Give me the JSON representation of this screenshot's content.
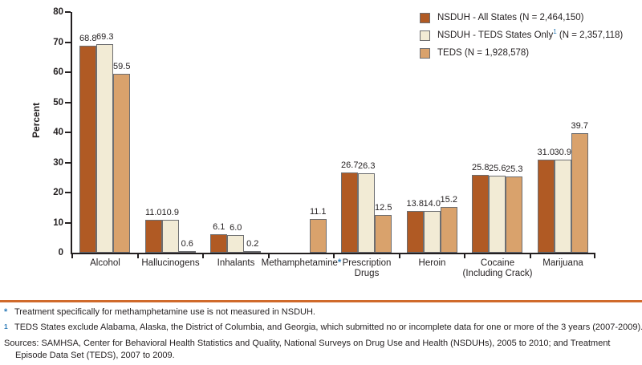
{
  "colors": {
    "axis": "#231F20",
    "text": "#231F20",
    "bar_border": "#6D6E71",
    "footnote_marker": "#2E7CB8",
    "divider_orange": "#D06A2B",
    "series_1": "#B05A24",
    "series_2": "#F2EBD5",
    "series_3": "#D9A26C"
  },
  "chart_data": {
    "type": "bar",
    "title": "",
    "xlabel": "",
    "ylabel": "Percent",
    "ylim": [
      0,
      80
    ],
    "y_ticks": [
      0,
      10,
      20,
      30,
      40,
      50,
      60,
      70,
      80
    ],
    "grid": false,
    "legend_position": "top-right",
    "categories": [
      {
        "lines": [
          "Alcohol"
        ],
        "marker": ""
      },
      {
        "lines": [
          "Hallucinogens"
        ],
        "marker": ""
      },
      {
        "lines": [
          "Inhalants"
        ],
        "marker": ""
      },
      {
        "lines": [
          "Methamphetamine"
        ],
        "marker": "*"
      },
      {
        "lines": [
          "Prescription",
          "Drugs"
        ],
        "marker": ""
      },
      {
        "lines": [
          "Heroin"
        ],
        "marker": ""
      },
      {
        "lines": [
          "Cocaine",
          "(Including Crack)"
        ],
        "marker": ""
      },
      {
        "lines": [
          "Marijuana"
        ],
        "marker": ""
      }
    ],
    "series": [
      {
        "name_pre": "NSDUH - All States (N = 2,464,150)",
        "sup": "",
        "name_post": "",
        "color": "#B05A24",
        "values": [
          68.8,
          11.0,
          6.1,
          null,
          26.7,
          13.8,
          25.8,
          31.0
        ]
      },
      {
        "name_pre": "NSDUH - TEDS States Only",
        "sup": "1",
        "name_post": " (N = 2,357,118)",
        "color": "#F2EBD5",
        "values": [
          69.3,
          10.9,
          6.0,
          null,
          26.3,
          14.0,
          25.6,
          30.9
        ]
      },
      {
        "name_pre": "TEDS (N = 1,928,578)",
        "sup": "",
        "name_post": "",
        "color": "#D9A26C",
        "values": [
          59.5,
          0.6,
          0.2,
          11.1,
          12.5,
          15.2,
          25.3,
          39.7
        ]
      }
    ]
  },
  "footnotes": [
    {
      "marker": "*",
      "superscript": false,
      "text": "Treatment specifically for methamphetamine use is not measured in NSDUH."
    },
    {
      "marker": "1",
      "superscript": true,
      "text": "TEDS States exclude Alabama, Alaska, the District of Columbia, and Georgia, which submitted no or incomplete data for one or more of the 3 years (2007-2009)."
    }
  ],
  "sources": "Sources: SAMHSA, Center for Behavioral Health Statistics and Quality, National Surveys on Drug Use and Health (NSDUHs), 2005 to 2010; and Treatment Episode Data Set (TEDS), 2007 to 2009."
}
